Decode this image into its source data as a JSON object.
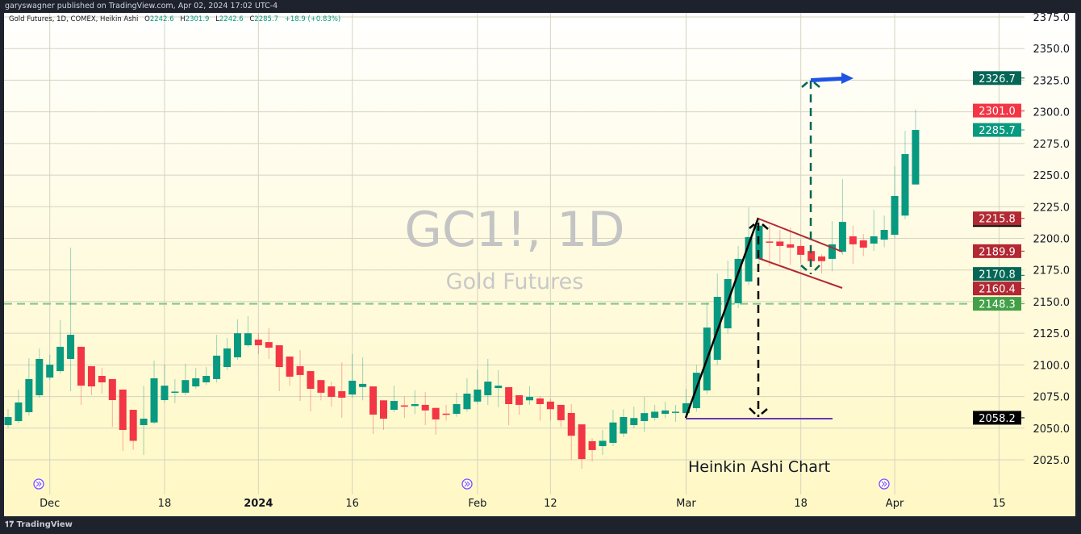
{
  "header": {
    "published": "garyswagner published on TradingView.com, Apr 02, 2024 17:02 UTC-4"
  },
  "legend": {
    "symbol": "Gold Futures, 1D, COMEX, Heikin Ashi",
    "o_label": "O",
    "o": "2242.6",
    "h_label": "H",
    "h": "2301.9",
    "l_label": "L",
    "l": "2242.6",
    "c_label": "C",
    "c": "2285.7",
    "change": "+18.9 (+0.83%)"
  },
  "watermark": {
    "ticker": "GC1!, 1D",
    "name": "Gold Futures"
  },
  "annotation_text": "Heinkin Ashi  Chart",
  "footer": {
    "brand": "TradingView"
  },
  "colors": {
    "up": "#089981",
    "down": "#f23645",
    "background_top": "#ffffff",
    "background_bottom": "#fff8c4"
  },
  "chart_data": {
    "type": "candlestick",
    "style": "Heikin Ashi",
    "ylim": [
      2010,
      2385
    ],
    "y_ticks": [
      "2025.0",
      "2050.0",
      "2075.0",
      "2100.0",
      "2125.0",
      "2150.0",
      "2175.0",
      "2200.0",
      "2225.0",
      "2250.0",
      "2275.0",
      "2300.0",
      "2325.0",
      "2350.0",
      "2375.0"
    ],
    "x_ticks": [
      {
        "label": "Dec",
        "bar": 5,
        "bold": false
      },
      {
        "label": "18",
        "bar": 16,
        "bold": false
      },
      {
        "label": "2024",
        "bar": 25,
        "bold": true
      },
      {
        "label": "16",
        "bar": 34,
        "bold": false
      },
      {
        "label": "Feb",
        "bar": 46,
        "bold": false
      },
      {
        "label": "12",
        "bar": 53,
        "bold": false
      },
      {
        "label": "Mar",
        "bar": 66,
        "bold": false
      },
      {
        "label": "18",
        "bar": 77,
        "bold": false
      },
      {
        "label": "Apr",
        "bar": 86,
        "bold": false
      },
      {
        "label": "15",
        "bar": 96,
        "bold": false
      }
    ],
    "ohlc": [
      [
        2052.4,
        2065.2,
        2050,
        2058.8
      ],
      [
        2055.6,
        2080.5,
        2054,
        2070.3
      ],
      [
        2062.6,
        2105.3,
        2060,
        2088.8
      ],
      [
        2076.0,
        2113,
        2074,
        2104.7
      ],
      [
        2090,
        2108,
        2088,
        2100.2
      ],
      [
        2095.1,
        2135.3,
        2093,
        2114.3
      ],
      [
        2104.7,
        2192.7,
        2079.2,
        2123.8
      ],
      [
        2114.3,
        2114.3,
        2068.3,
        2083.6
      ],
      [
        2099,
        2099,
        2076,
        2083
      ],
      [
        2091.3,
        2097.7,
        2077.3,
        2086.2
      ],
      [
        2088.8,
        2088.8,
        2051,
        2072.2
      ],
      [
        2080.5,
        2080.5,
        2032,
        2048.6
      ],
      [
        2064.5,
        2064.5,
        2033,
        2040
      ],
      [
        2052.4,
        2083.6,
        2028.8,
        2057.5
      ],
      [
        2054.5,
        2103.4,
        2053,
        2089.4
      ],
      [
        2072.2,
        2100.2,
        2070.3,
        2083.6
      ],
      [
        2078.5,
        2088.8,
        2069.7,
        2078.9
      ],
      [
        2078,
        2101,
        2076,
        2088
      ],
      [
        2083,
        2097.7,
        2081,
        2089.4
      ],
      [
        2086.2,
        2098.3,
        2084,
        2091.3
      ],
      [
        2088.8,
        2123.8,
        2086,
        2107.3
      ],
      [
        2098.3,
        2121.2,
        2096,
        2113
      ],
      [
        2106,
        2136,
        2104,
        2125
      ],
      [
        2115.5,
        2138.5,
        2114,
        2125
      ],
      [
        2120,
        2125,
        2108.5,
        2115.5
      ],
      [
        2118,
        2128.9,
        2104.7,
        2113.6
      ],
      [
        2115.5,
        2115.5,
        2079.2,
        2098.3
      ],
      [
        2106.6,
        2106.6,
        2083.6,
        2090.7
      ],
      [
        2099,
        2111.7,
        2071.5,
        2092
      ],
      [
        2095.1,
        2095.1,
        2063.2,
        2081.1
      ],
      [
        2088,
        2088,
        2072,
        2078
      ],
      [
        2083,
        2086.8,
        2067,
        2074.7
      ],
      [
        2079.2,
        2102,
        2058.2,
        2074.1
      ],
      [
        2076.6,
        2108.5,
        2074,
        2087.5
      ],
      [
        2082.5,
        2106,
        2072,
        2085
      ],
      [
        2083,
        2083,
        2045.4,
        2060.7
      ],
      [
        2072,
        2072,
        2048.6,
        2057.5
      ],
      [
        2064.5,
        2083.6,
        2062.6,
        2071.5
      ],
      [
        2068,
        2075,
        2058,
        2067
      ],
      [
        2067.5,
        2079.9,
        2061,
        2069
      ],
      [
        2068.4,
        2078.5,
        2052.4,
        2064
      ],
      [
        2066,
        2066,
        2044.8,
        2056.9
      ],
      [
        2061.5,
        2068.4,
        2056,
        2061.3
      ],
      [
        2061.3,
        2078,
        2059,
        2069
      ],
      [
        2065,
        2089.4,
        2063,
        2077.3
      ],
      [
        2071,
        2096.4,
        2069,
        2080.5
      ],
      [
        2076,
        2104.7,
        2068.4,
        2086.8
      ],
      [
        2081.7,
        2095.8,
        2066.4,
        2083.6
      ],
      [
        2082.4,
        2082.4,
        2052.4,
        2069
      ],
      [
        2076,
        2076,
        2060.7,
        2068.4
      ],
      [
        2072,
        2083,
        2068.4,
        2074.7
      ],
      [
        2073.5,
        2075.4,
        2056,
        2069
      ],
      [
        2071,
        2073,
        2056,
        2065
      ],
      [
        2068.4,
        2068.4,
        2051,
        2056.3
      ],
      [
        2062,
        2069,
        2025,
        2044
      ],
      [
        2053,
        2053,
        2018,
        2025.6
      ],
      [
        2039.7,
        2042,
        2023.7,
        2032.7
      ],
      [
        2035.8,
        2048.6,
        2028.8,
        2040
      ],
      [
        2038.4,
        2064.5,
        2036,
        2054.5
      ],
      [
        2045.7,
        2065,
        2043,
        2058.8
      ],
      [
        2052.4,
        2067.1,
        2050,
        2058
      ],
      [
        2055.6,
        2074.7,
        2047,
        2061.9
      ],
      [
        2058.2,
        2068.4,
        2056,
        2063
      ],
      [
        2061.3,
        2071,
        2058,
        2064
      ],
      [
        2062.5,
        2068.4,
        2055,
        2063
      ],
      [
        2061.9,
        2081,
        2058,
        2069.7
      ],
      [
        2065.8,
        2100,
        2063,
        2093.8
      ],
      [
        2079.8,
        2149.3,
        2077,
        2129.5
      ],
      [
        2104,
        2172.3,
        2100,
        2153.8
      ],
      [
        2128.9,
        2182.5,
        2125,
        2167.8
      ],
      [
        2148.7,
        2194,
        2145,
        2183.8
      ],
      [
        2165.9,
        2224.5,
        2163,
        2201
      ],
      [
        2183.8,
        2216,
        2180,
        2210
      ],
      [
        2197.5,
        2210,
        2178,
        2197
      ],
      [
        2197.5,
        2206.7,
        2180,
        2194
      ],
      [
        2195.3,
        2208.6,
        2179,
        2192.7
      ],
      [
        2194,
        2199,
        2180,
        2187
      ],
      [
        2190,
        2195.3,
        2178,
        2182
      ],
      [
        2185.7,
        2187.6,
        2172.3,
        2182
      ],
      [
        2183.8,
        2213.7,
        2174,
        2195.3
      ],
      [
        2189.5,
        2246.8,
        2187,
        2213
      ],
      [
        2201.6,
        2210,
        2180,
        2195.3
      ],
      [
        2198.4,
        2203.5,
        2186,
        2192.7
      ],
      [
        2195.9,
        2222.6,
        2190,
        2201.6
      ],
      [
        2199,
        2218,
        2193,
        2206.7
      ],
      [
        2202.8,
        2257,
        2200,
        2233.5
      ],
      [
        2218,
        2285,
        2215,
        2266.6
      ],
      [
        2242.6,
        2301.9,
        2242.6,
        2285.7
      ]
    ],
    "price_labels": [
      {
        "value": 2326.7,
        "text": "2326.7",
        "color": "#056656"
      },
      {
        "value": 2301.0,
        "text": "2301.0",
        "color": "#f23645"
      },
      {
        "value": 2285.7,
        "text": "2285.7",
        "color": "#089981"
      },
      {
        "value": 2215.8,
        "text": "2215.8",
        "color": "#b22833"
      },
      {
        "value": 2189.9,
        "text": "2189.9",
        "color": "#b22833"
      },
      {
        "value": 2170.8,
        "text": "2170.8",
        "color": "#056656"
      },
      {
        "value": 2160.4,
        "text": "2160.4",
        "color": "#b22833"
      },
      {
        "value": 2148.3,
        "text": "2148.3",
        "color": "#43a047"
      },
      {
        "value": 2058.2,
        "text": "2058.2",
        "color": "#000000"
      }
    ],
    "horizontal_line": {
      "value": 2148.3,
      "color": "#81c784",
      "style": "dashed"
    },
    "grid": true
  }
}
